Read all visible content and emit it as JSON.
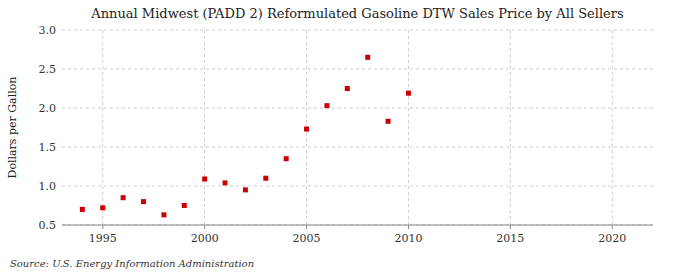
{
  "chart_data": {
    "type": "scatter",
    "title": "Annual Midwest (PADD 2) Reformulated Gasoline DTW Sales Price by All Sellers",
    "ylabel": "Dollars per Gallon",
    "annotations": [
      "Source: U.S. Energy Information Administration"
    ],
    "x": [
      1994,
      1995,
      1996,
      1997,
      1998,
      1999,
      2000,
      2001,
      2002,
      2003,
      2004,
      2005,
      2006,
      2007,
      2008,
      2009,
      2010
    ],
    "values": [
      0.7,
      0.72,
      0.85,
      0.8,
      0.63,
      0.75,
      1.09,
      1.04,
      0.95,
      1.1,
      1.35,
      1.73,
      2.03,
      2.25,
      2.65,
      1.83,
      2.19
    ],
    "color": "#cc0000",
    "marker": "square",
    "xlim": [
      1993,
      2022
    ],
    "ylim": [
      0.5,
      3.0
    ],
    "xticks": [
      1995,
      2000,
      2005,
      2010,
      2015,
      2020
    ],
    "yticks": [
      0.5,
      {
        "value": 1.0,
        "label": "1.0"
      },
      1.5,
      {
        "value": 2.0,
        "label": "2.0"
      },
      2.5,
      {
        "value": 3.0,
        "label": "3.0"
      }
    ],
    "grid": true
  }
}
